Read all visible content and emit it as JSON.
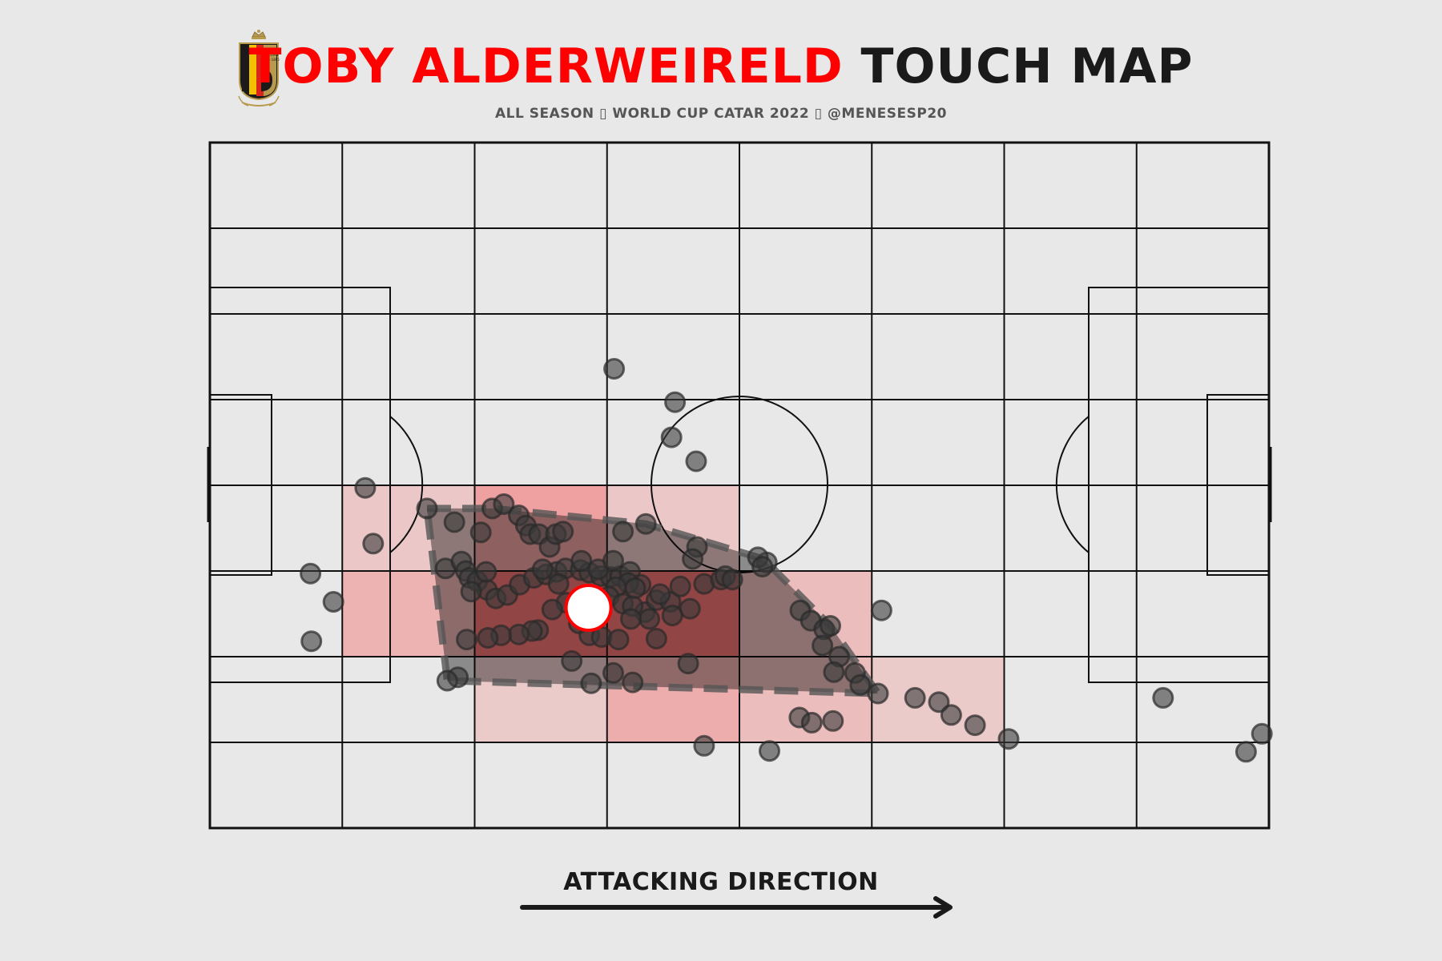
{
  "header": {
    "title_name": "TOBY ALDERWEIRELD",
    "title_rest": "TOUCH MAP",
    "subtitle": "ALL SEASON ▯ WORLD CUP CATAR 2022 ▯ @MENESESP20",
    "crest_text": [
      "ROYAL",
      "BELGIAN",
      "FA - 1895"
    ]
  },
  "footer": {
    "direction_label": "ATTACKING DIRECTION"
  },
  "colors": {
    "background": "#e8e8e8",
    "title_accent": "#ff0000",
    "text_dark": "#1a1a1a",
    "heat_high": "#ff0000",
    "touch_marker": "#3a3a3a"
  },
  "chart_data": {
    "type": "scatter",
    "pitch_dimensions": {
      "length": 120,
      "width": 80
    },
    "grid": {
      "columns": 8,
      "rows": 8
    },
    "heatmap_bins": [
      {
        "col": 1,
        "row": 4,
        "level": 0.15
      },
      {
        "col": 1,
        "row": 5,
        "level": 0.35
      },
      {
        "col": 2,
        "row": 4,
        "level": 0.55
      },
      {
        "col": 2,
        "row": 5,
        "level": 1.0
      },
      {
        "col": 2,
        "row": 6,
        "level": 0.12
      },
      {
        "col": 3,
        "row": 4,
        "level": 0.15
      },
      {
        "col": 3,
        "row": 5,
        "level": 1.0
      },
      {
        "col": 3,
        "row": 6,
        "level": 0.42
      },
      {
        "col": 4,
        "row": 5,
        "level": 0.25
      },
      {
        "col": 4,
        "row": 6,
        "level": 0.25
      },
      {
        "col": 5,
        "row": 6,
        "level": 0.12
      }
    ],
    "touches": [
      [
        11.4,
        29.7
      ],
      [
        17.6,
        39.7
      ],
      [
        45.8,
        53.6
      ],
      [
        52.7,
        49.7
      ],
      [
        52.3,
        45.6
      ],
      [
        55.1,
        42.8
      ],
      [
        24.6,
        37.3
      ],
      [
        27.7,
        35.7
      ],
      [
        32.0,
        37.3
      ],
      [
        33.3,
        37.8
      ],
      [
        35.0,
        36.5
      ],
      [
        30.7,
        34.5
      ],
      [
        35.8,
        35.3
      ],
      [
        36.3,
        34.3
      ],
      [
        37.3,
        34.3
      ],
      [
        38.5,
        32.8
      ],
      [
        39.2,
        34.3
      ],
      [
        40.0,
        34.6
      ],
      [
        46.8,
        34.6
      ],
      [
        49.4,
        35.5
      ],
      [
        55.2,
        32.8
      ],
      [
        54.7,
        31.4
      ],
      [
        63.1,
        31.0
      ],
      [
        62.1,
        31.6
      ],
      [
        62.6,
        30.5
      ],
      [
        18.5,
        33.2
      ],
      [
        14.0,
        26.4
      ],
      [
        11.5,
        21.8
      ],
      [
        26.7,
        30.3
      ],
      [
        28.5,
        31.1
      ],
      [
        29.0,
        30.0
      ],
      [
        29.4,
        29.2
      ],
      [
        30.3,
        28.8
      ],
      [
        31.4,
        27.8
      ],
      [
        32.4,
        26.8
      ],
      [
        33.7,
        27.2
      ],
      [
        35.1,
        28.4
      ],
      [
        36.7,
        29.2
      ],
      [
        38.1,
        29.6
      ],
      [
        39.3,
        29.9
      ],
      [
        40.3,
        30.3
      ],
      [
        42.0,
        30.1
      ],
      [
        43.0,
        29.8
      ],
      [
        44.3,
        29.4
      ],
      [
        45.4,
        29.3
      ],
      [
        46.5,
        29.4
      ],
      [
        47.6,
        29.9
      ],
      [
        48.8,
        28.4
      ],
      [
        47.4,
        28.6
      ],
      [
        46.0,
        28.1
      ],
      [
        45.2,
        27.0
      ],
      [
        46.8,
        26.2
      ],
      [
        49.3,
        25.2
      ],
      [
        47.9,
        25.9
      ],
      [
        50.6,
        26.6
      ],
      [
        52.2,
        26.4
      ],
      [
        54.4,
        25.6
      ],
      [
        52.4,
        24.8
      ],
      [
        49.8,
        24.4
      ],
      [
        47.7,
        24.4
      ],
      [
        40.4,
        26.3
      ],
      [
        38.8,
        25.5
      ],
      [
        41.8,
        23.9
      ],
      [
        43.0,
        22.5
      ],
      [
        44.4,
        22.3
      ],
      [
        46.3,
        22.0
      ],
      [
        37.2,
        23.1
      ],
      [
        36.5,
        23.0
      ],
      [
        35.0,
        22.6
      ],
      [
        33.0,
        22.5
      ],
      [
        31.5,
        22.2
      ],
      [
        29.1,
        22.0
      ],
      [
        31.3,
        29.9
      ],
      [
        29.6,
        27.6
      ],
      [
        37.7,
        30.2
      ],
      [
        39.5,
        28.5
      ],
      [
        42.1,
        31.2
      ],
      [
        44.0,
        30.2
      ],
      [
        45.7,
        31.2
      ],
      [
        48.2,
        28.0
      ],
      [
        51.0,
        27.3
      ],
      [
        53.3,
        28.2
      ],
      [
        56.0,
        28.5
      ],
      [
        57.9,
        29.0
      ],
      [
        58.4,
        29.4
      ],
      [
        59.2,
        29.0
      ],
      [
        50.6,
        22.1
      ],
      [
        54.2,
        19.2
      ],
      [
        41.0,
        19.5
      ],
      [
        45.7,
        18.1
      ],
      [
        28.1,
        17.6
      ],
      [
        26.9,
        17.2
      ],
      [
        47.9,
        17.0
      ],
      [
        66.9,
        25.4
      ],
      [
        68.1,
        24.2
      ],
      [
        69.6,
        23.2
      ],
      [
        70.3,
        23.6
      ],
      [
        71.3,
        20.0
      ],
      [
        69.4,
        21.3
      ],
      [
        76.1,
        25.4
      ],
      [
        73.1,
        18.1
      ],
      [
        70.7,
        18.2
      ],
      [
        73.7,
        16.7
      ],
      [
        75.7,
        15.7
      ],
      [
        79.9,
        15.2
      ],
      [
        82.6,
        14.7
      ],
      [
        70.6,
        12.5
      ],
      [
        66.8,
        12.9
      ],
      [
        68.2,
        12.3
      ],
      [
        56.0,
        9.6
      ],
      [
        90.5,
        10.4
      ],
      [
        84.0,
        13.2
      ],
      [
        86.7,
        12.0
      ],
      [
        108.0,
        15.2
      ],
      [
        117.4,
        8.9
      ],
      [
        119.2,
        11.0
      ],
      [
        63.4,
        9.0
      ],
      [
        43.2,
        16.9
      ]
    ],
    "average_position": [
      42.9,
      25.7
    ]
  }
}
